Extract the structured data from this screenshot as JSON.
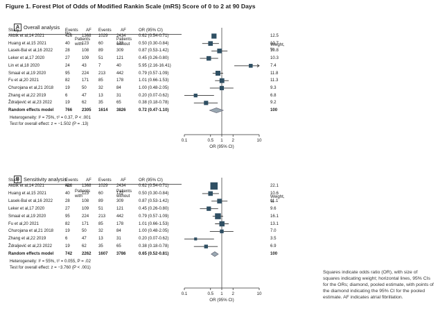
{
  "figure": {
    "title": "Figure 1. Forest Plot of Odds of Modified Rankin Scale (mRS) Score of 0 to 2 at 90 Days",
    "legend_note": "Squares indicate odds ratio (OR), with size of squares indicating weight; horizontal lines, 95% CIs for the ORs; diamond, pooled estimate, with points of the diamond indicating the 95% CI for the pooled estimate. AF indicates atrial fibrillation."
  },
  "columns": {
    "no": "No.",
    "patients_with": "Patients with",
    "with_af": "AF",
    "patients_without": "Patients without",
    "without_af": "AF",
    "study": "Study",
    "events": "Events",
    "events2": "Events",
    "or_ci": "OR (95% CI)",
    "weight": "Weight, %"
  },
  "colors": {
    "marker": "#2f4f63",
    "diamond": "#9aa8b2",
    "line": "#333333"
  },
  "chart_data": [
    {
      "type": "forest",
      "panel": "A",
      "title": "Overall analysis",
      "xlabel": "OR (95% CI)",
      "xscale": "log",
      "xlim": [
        0.1,
        10
      ],
      "xticks": [
        "0.1",
        "0.5",
        "1",
        "2",
        "10"
      ],
      "xtick_values": [
        0.1,
        0.5,
        1,
        2,
        10
      ],
      "studies": [
        {
          "study": "Akbik et al,14 2021",
          "events_with": "426",
          "total_with": "1368",
          "events_without": "1029",
          "total_without": "2434",
          "or_ci": "0.62 (0.54-0.71)",
          "or": 0.62,
          "lo": 0.54,
          "hi": 0.71,
          "weight": "12.5",
          "w": 12.5
        },
        {
          "study": "Huang et al,15 2021",
          "events_with": "40",
          "total_with": "123",
          "events_without": "60",
          "total_without": "122",
          "or_ci": "0.50 (0.30-0.84)",
          "or": 0.5,
          "lo": 0.3,
          "hi": 0.84,
          "weight": "10.7",
          "w": 10.7
        },
        {
          "study": "Lasek-Bal et al,16 2022",
          "events_with": "28",
          "total_with": "108",
          "events_without": "89",
          "total_without": "309",
          "or_ci": "0.87 (0.53-1.42)",
          "or": 0.87,
          "lo": 0.53,
          "hi": 1.42,
          "weight": "10.8",
          "w": 10.8
        },
        {
          "study": "Leker et al,17 2020",
          "events_with": "27",
          "total_with": "109",
          "events_without": "51",
          "total_without": "121",
          "or_ci": "0.45 (0.26-0.80)",
          "or": 0.45,
          "lo": 0.26,
          "hi": 0.8,
          "weight": "10.3",
          "w": 10.3
        },
        {
          "study": "Lin et al,18 2020",
          "events_with": "24",
          "total_with": "43",
          "events_without": "7",
          "total_without": "40",
          "or_ci": "5.95 (2.16-16.41)",
          "or": 5.95,
          "lo": 2.16,
          "hi": 16.41,
          "weight": "7.4",
          "w": 7.4
        },
        {
          "study": "Smaal et al,19 2020",
          "events_with": "95",
          "total_with": "224",
          "events_without": "213",
          "total_without": "442",
          "or_ci": "0.79 (0.57-1.09)",
          "or": 0.79,
          "lo": 0.57,
          "hi": 1.09,
          "weight": "11.8",
          "w": 11.8
        },
        {
          "study": "Fu et al,20 2021",
          "events_with": "82",
          "total_with": "171",
          "events_without": "85",
          "total_without": "178",
          "or_ci": "1.01 (0.66-1.53)",
          "or": 1.01,
          "lo": 0.66,
          "hi": 1.53,
          "weight": "11.3",
          "w": 11.3
        },
        {
          "study": "Churojana et al,21 2018",
          "events_with": "19",
          "total_with": "50",
          "events_without": "32",
          "total_without": "84",
          "or_ci": "1.00 (0.48-2.05)",
          "or": 1.0,
          "lo": 0.48,
          "hi": 2.05,
          "weight": "9.3",
          "w": 9.3
        },
        {
          "study": "Zhang et al,22 2019",
          "events_with": "6",
          "total_with": "47",
          "events_without": "13",
          "total_without": "31",
          "or_ci": "0.20 (0.07-0.62)",
          "or": 0.2,
          "lo": 0.07,
          "hi": 0.62,
          "weight": "6.8",
          "w": 6.8
        },
        {
          "study": "Ždraljević et al,23 2022",
          "events_with": "19",
          "total_with": "62",
          "events_without": "35",
          "total_without": "65",
          "or_ci": "0.38 (0.18-0.78)",
          "or": 0.38,
          "lo": 0.18,
          "hi": 0.78,
          "weight": "9.2",
          "w": 9.2
        }
      ],
      "pooled": {
        "study": "Random effects model",
        "events_with": "766",
        "total_with": "2305",
        "events_without": "1614",
        "total_without": "3826",
        "or_ci": "0.72 (0.47-1.10)",
        "or": 0.72,
        "lo": 0.47,
        "hi": 1.1,
        "weight": "100"
      },
      "heterogeneity": "Heterogeneity: I² = 75%, τ² = 0.37, P < .001",
      "overall_test": "Test for overall effect: z = −1.502 (P = .13)"
    },
    {
      "type": "forest",
      "panel": "B",
      "title": "Sensitivity analysis",
      "xlabel": "OR (95% CI)",
      "xscale": "log",
      "xlim": [
        0.1,
        10
      ],
      "xticks": [
        "0.1",
        "0.5",
        "1",
        "2",
        "10"
      ],
      "xtick_values": [
        0.1,
        0.5,
        1,
        2,
        10
      ],
      "studies": [
        {
          "study": "Akbik et al,14 2021",
          "events_with": "426",
          "total_with": "1368",
          "events_without": "1029",
          "total_without": "2434",
          "or_ci": "0.62 (0.54-0.71)",
          "or": 0.62,
          "lo": 0.54,
          "hi": 0.71,
          "weight": "22.1",
          "w": 22.1
        },
        {
          "study": "Huang et al,15 2021",
          "events_with": "40",
          "total_with": "123",
          "events_without": "60",
          "total_without": "122",
          "or_ci": "0.50 (0.30-0.84)",
          "or": 0.5,
          "lo": 0.3,
          "hi": 0.84,
          "weight": "10.6",
          "w": 10.6
        },
        {
          "study": "Lasek-Bal et al,16 2022",
          "events_with": "28",
          "total_with": "108",
          "events_without": "89",
          "total_without": "309",
          "or_ci": "0.87 (0.53-1.42)",
          "or": 0.87,
          "lo": 0.53,
          "hi": 1.42,
          "weight": "11.1",
          "w": 11.1
        },
        {
          "study": "Leker et al,17 2020",
          "events_with": "27",
          "total_with": "109",
          "events_without": "51",
          "total_without": "121",
          "or_ci": "0.45 (0.26-0.80)",
          "or": 0.45,
          "lo": 0.26,
          "hi": 0.8,
          "weight": "9.6",
          "w": 9.6
        },
        {
          "study": "Smaal et al,19 2020",
          "events_with": "95",
          "total_with": "224",
          "events_without": "213",
          "total_without": "442",
          "or_ci": "0.79 (0.57-1.09)",
          "or": 0.79,
          "lo": 0.57,
          "hi": 1.09,
          "weight": "16.1",
          "w": 16.1
        },
        {
          "study": "Fu et al,20 2021",
          "events_with": "82",
          "total_with": "171",
          "events_without": "85",
          "total_without": "178",
          "or_ci": "1.01 (0.66-1.53)",
          "or": 1.01,
          "lo": 0.66,
          "hi": 1.53,
          "weight": "13.1",
          "w": 13.1
        },
        {
          "study": "Churojana et al,21 2018",
          "events_with": "19",
          "total_with": "50",
          "events_without": "32",
          "total_without": "84",
          "or_ci": "1.00 (0.48-2.05)",
          "or": 1.0,
          "lo": 0.48,
          "hi": 2.05,
          "weight": "7.0",
          "w": 7.0
        },
        {
          "study": "Zhang et al,22 2019",
          "events_with": "6",
          "total_with": "47",
          "events_without": "13",
          "total_without": "31",
          "or_ci": "0.20 (0.07-0.62)",
          "or": 0.2,
          "lo": 0.07,
          "hi": 0.62,
          "weight": "3.5",
          "w": 3.5
        },
        {
          "study": "Ždraljević et al,23 2022",
          "events_with": "19",
          "total_with": "62",
          "events_without": "35",
          "total_without": "65",
          "or_ci": "0.38 (0.18-0.78)",
          "or": 0.38,
          "lo": 0.18,
          "hi": 0.78,
          "weight": "6.9",
          "w": 6.9
        }
      ],
      "pooled": {
        "study": "Random effects model",
        "events_with": "742",
        "total_with": "2262",
        "events_without": "1607",
        "total_without": "3786",
        "or_ci": "0.65 (0.52-0.81)",
        "or": 0.65,
        "lo": 0.52,
        "hi": 0.81,
        "weight": "100"
      },
      "heterogeneity": "Heterogeneity: I² = 55%, τ² = 0.055, P = .02",
      "overall_test": "Test for overall effect: z = −3.760 (P < .001)"
    }
  ]
}
